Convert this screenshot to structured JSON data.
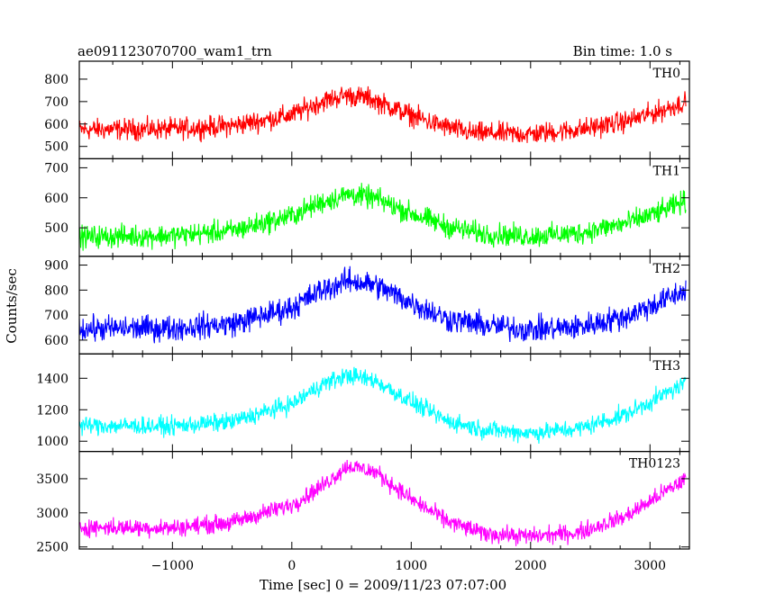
{
  "chart_data": {
    "type": "line",
    "title_left": "ae091123070700_wam1_trn",
    "title_right": "Bin time: 1.0 s",
    "xlabel": "Time [sec] 0 = 2009/11/23 07:07:00",
    "ylabel": "Counts/sec",
    "xlim": [
      -1780,
      3330
    ],
    "x_ticks": [
      -1000,
      0,
      1000,
      2000,
      3000
    ],
    "x_tick_labels": [
      "−1000",
      "0",
      "1000",
      "2000",
      "3000"
    ],
    "data_x_range": [
      -1780,
      3300
    ],
    "bin_time_s": 1.0,
    "panels": [
      {
        "name": "TH0",
        "color": "#ff0000",
        "ylim": [
          445,
          880
        ],
        "y_ticks": [
          500,
          600,
          700,
          800
        ],
        "profile": [
          [
            -1780,
            575
          ],
          [
            -1000,
            578
          ],
          [
            -500,
            592
          ],
          [
            0,
            640
          ],
          [
            250,
            700
          ],
          [
            450,
            728
          ],
          [
            650,
            715
          ],
          [
            900,
            660
          ],
          [
            1200,
            600
          ],
          [
            1500,
            560
          ],
          [
            2000,
            555
          ],
          [
            2400,
            575
          ],
          [
            2800,
            612
          ],
          [
            3100,
            660
          ],
          [
            3300,
            700
          ]
        ],
        "noise": 70
      },
      {
        "name": "TH1",
        "color": "#00ff00",
        "ylim": [
          405,
          730
        ],
        "y_ticks": [
          500,
          600,
          700
        ],
        "profile": [
          [
            -1780,
            470
          ],
          [
            -1000,
            474
          ],
          [
            -500,
            490
          ],
          [
            0,
            540
          ],
          [
            250,
            585
          ],
          [
            480,
            612
          ],
          [
            700,
            598
          ],
          [
            1000,
            548
          ],
          [
            1300,
            505
          ],
          [
            1600,
            480
          ],
          [
            2000,
            472
          ],
          [
            2400,
            482
          ],
          [
            2800,
            515
          ],
          [
            3100,
            555
          ],
          [
            3300,
            590
          ]
        ],
        "noise": 55
      },
      {
        "name": "TH2",
        "color": "#0000ff",
        "ylim": [
          545,
          935
        ],
        "y_ticks": [
          600,
          700,
          800,
          900
        ],
        "profile": [
          [
            -1780,
            645
          ],
          [
            -1000,
            648
          ],
          [
            -500,
            665
          ],
          [
            0,
            730
          ],
          [
            250,
            800
          ],
          [
            480,
            838
          ],
          [
            700,
            820
          ],
          [
            1000,
            750
          ],
          [
            1300,
            685
          ],
          [
            1600,
            660
          ],
          [
            2000,
            642
          ],
          [
            2400,
            652
          ],
          [
            2800,
            695
          ],
          [
            3100,
            755
          ],
          [
            3300,
            800
          ]
        ],
        "noise": 75
      },
      {
        "name": "TH3",
        "color": "#00ffff",
        "ylim": [
          935,
          1555
        ],
        "y_ticks": [
          1000,
          1200,
          1400
        ],
        "profile": [
          [
            -1780,
            1100
          ],
          [
            -1000,
            1095
          ],
          [
            -500,
            1125
          ],
          [
            0,
            1235
          ],
          [
            250,
            1360
          ],
          [
            470,
            1420
          ],
          [
            700,
            1385
          ],
          [
            1000,
            1250
          ],
          [
            1300,
            1130
          ],
          [
            1600,
            1075
          ],
          [
            2000,
            1052
          ],
          [
            2400,
            1080
          ],
          [
            2800,
            1170
          ],
          [
            3100,
            1290
          ],
          [
            3300,
            1370
          ]
        ],
        "noise": 85
      },
      {
        "name": "TH0123",
        "color": "#ff00ff",
        "ylim": [
          2470,
          3900
        ],
        "y_ticks": [
          2500,
          3000,
          3500
        ],
        "profile": [
          [
            -1780,
            2790
          ],
          [
            -1000,
            2780
          ],
          [
            -500,
            2860
          ],
          [
            0,
            3120
          ],
          [
            250,
            3390
          ],
          [
            470,
            3690
          ],
          [
            700,
            3600
          ],
          [
            1000,
            3200
          ],
          [
            1300,
            2880
          ],
          [
            1600,
            2700
          ],
          [
            2000,
            2655
          ],
          [
            2400,
            2710
          ],
          [
            2800,
            2950
          ],
          [
            3100,
            3280
          ],
          [
            3300,
            3500
          ]
        ],
        "noise": 190
      }
    ]
  }
}
